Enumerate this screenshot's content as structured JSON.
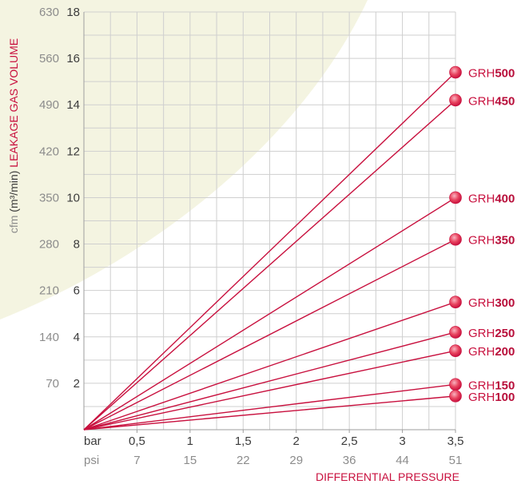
{
  "chart_data": {
    "type": "line",
    "title": "",
    "xlabel": "DIFFERENTIAL PRESSURE",
    "ylabel": {
      "unit": "cfm",
      "metric_unit": "(m³/min)",
      "label": "LEAKAGE GAS VOLUME"
    },
    "x_axis": {
      "unit_primary": "bar",
      "unit_secondary": "psi",
      "ticks_bar": [
        0.5,
        1,
        1.5,
        2,
        2.5,
        3,
        3.5
      ],
      "tick_labels_bar": [
        "0,5",
        "1",
        "1,5",
        "2",
        "2,5",
        "3",
        "3,5"
      ],
      "tick_labels_psi": [
        "7",
        "15",
        "22",
        "29",
        "36",
        "44",
        "51"
      ],
      "xlim": [
        0,
        3.5
      ]
    },
    "y_axis": {
      "ylim": [
        0,
        18
      ],
      "ticks_m3": [
        2,
        4,
        6,
        8,
        10,
        12,
        14,
        16,
        18
      ],
      "tick_labels_cfm": [
        "70",
        "140",
        "210",
        "280",
        "350",
        "420",
        "490",
        "560",
        "630"
      ]
    },
    "grid": true,
    "series": [
      {
        "name": "GRH500",
        "x": [
          0,
          3.5
        ],
        "y": [
          0,
          15.4
        ]
      },
      {
        "name": "GRH450",
        "x": [
          0,
          3.5
        ],
        "y": [
          0,
          14.2
        ]
      },
      {
        "name": "GRH400",
        "x": [
          0,
          3.5
        ],
        "y": [
          0,
          10.0
        ]
      },
      {
        "name": "GRH350",
        "x": [
          0,
          3.5
        ],
        "y": [
          0,
          8.2
        ]
      },
      {
        "name": "GRH300",
        "x": [
          0,
          3.5
        ],
        "y": [
          0,
          5.5
        ]
      },
      {
        "name": "GRH250",
        "x": [
          0,
          3.5
        ],
        "y": [
          0,
          4.2
        ]
      },
      {
        "name": "GRH200",
        "x": [
          0,
          3.5
        ],
        "y": [
          0,
          3.4
        ]
      },
      {
        "name": "GRH150",
        "x": [
          0,
          3.5
        ],
        "y": [
          0,
          1.95
        ]
      },
      {
        "name": "GRH100",
        "x": [
          0,
          3.5
        ],
        "y": [
          0,
          1.45
        ]
      }
    ],
    "series_label_prefix": "GRH",
    "series_label_suffixes": [
      "500",
      "450",
      "400",
      "350",
      "300",
      "250",
      "200",
      "150",
      "100"
    ]
  },
  "colors": {
    "line": "#c8103e",
    "label_bold": "#b80e3a",
    "label_text": "#c8103e",
    "grid": "#cfcfcf",
    "axis": "#9e9e9e",
    "tick_dark": "#3c3c3c",
    "tick_light": "#8c8c8c",
    "ylabel_gray": "#8c8c8c",
    "ylabel_dark": "#3c3c3c",
    "ylabel_red": "#c8103e",
    "background_shape": "#f4f4e1",
    "marker": "#e8445f",
    "marker_highlight": "#f9b3c0"
  }
}
